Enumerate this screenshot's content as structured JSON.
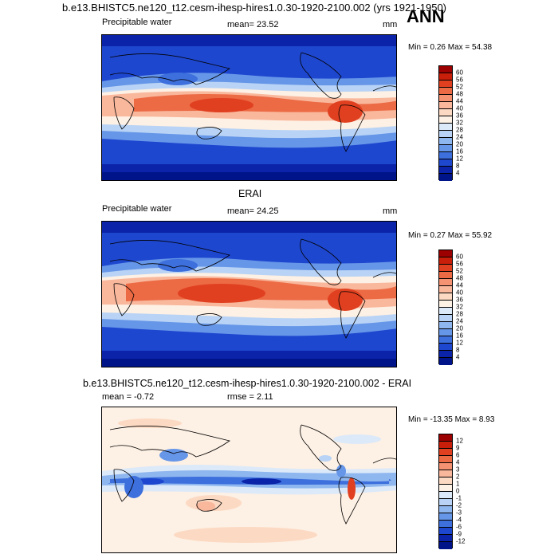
{
  "header": {
    "title": "b.e13.BHISTC5.ne120_t12.cesm-ihesp-hires1.0.30-1920-2100.002 (yrs 1921-1950)",
    "season": "ANN"
  },
  "panel1": {
    "variable": "Precipitable water",
    "mean": "mean=  23.52",
    "units": "mm",
    "minmax": "Min =   0.26 Max =  54.38"
  },
  "panel2": {
    "heading": "ERAI",
    "variable": "Precipitable water",
    "mean": "mean=  24.25",
    "units": "mm",
    "minmax": "Min =   0.27 Max =  55.92"
  },
  "panel3": {
    "heading": "b.e13.BHISTC5.ne120_t12.cesm-ihesp-hires1.0.30-1920-2100.002 - ERAI",
    "mean": "mean =  -0.72",
    "rmse": "rmse =   2.11",
    "minmax": "Min = -13.35 Max =   8.93"
  },
  "colorbar_abs": {
    "labels": [
      "60",
      "56",
      "52",
      "48",
      "44",
      "40",
      "36",
      "32",
      "28",
      "24",
      "20",
      "16",
      "12",
      "8",
      "4"
    ],
    "colors": [
      "#9c0000",
      "#c81e0a",
      "#e04020",
      "#ec6a44",
      "#f59272",
      "#f9b79c",
      "#fcd9c2",
      "#fdf0e4",
      "#dce9f9",
      "#b8d3f5",
      "#8fb7ef",
      "#6696e8",
      "#3d6fdd",
      "#1e47cf",
      "#0a23a8",
      "#001489"
    ]
  },
  "colorbar_diff": {
    "labels": [
      "12",
      "9",
      "6",
      "4",
      "3",
      "2",
      "1",
      "0",
      "-1",
      "-2",
      "-3",
      "-4",
      "-6",
      "-9",
      "-12"
    ],
    "colors": [
      "#9c0000",
      "#c81e0a",
      "#e04020",
      "#ec6a44",
      "#f59272",
      "#f9b79c",
      "#fcd9c2",
      "#fdf0e4",
      "#dce9f9",
      "#b8d3f5",
      "#8fb7ef",
      "#6696e8",
      "#3d6fdd",
      "#1e47cf",
      "#0a23a8",
      "#001489"
    ]
  }
}
